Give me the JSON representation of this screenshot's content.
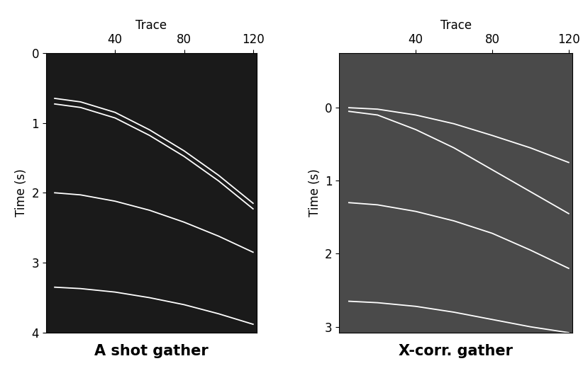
{
  "chart_data": [
    {
      "type": "line",
      "title": "A shot gather",
      "xlabel": "Trace",
      "ylabel": "Time (s)",
      "x": [
        5,
        20,
        40,
        60,
        80,
        100,
        120
      ],
      "xlim": [
        0,
        122
      ],
      "xticks": [
        40,
        80,
        120
      ],
      "ylim": [
        4,
        0
      ],
      "yticks": [
        0,
        1,
        2,
        3,
        4
      ],
      "series": [
        {
          "color": "#ffffff",
          "values": [
            0.65,
            0.7,
            0.85,
            1.1,
            1.4,
            1.75,
            2.15
          ]
        },
        {
          "color": "#ffffff",
          "values": [
            0.73,
            0.78,
            0.93,
            1.18,
            1.48,
            1.83,
            2.23
          ]
        },
        {
          "color": "#ffffff",
          "values": [
            2.0,
            2.03,
            2.12,
            2.25,
            2.42,
            2.62,
            2.85
          ]
        },
        {
          "color": "#ffffff",
          "values": [
            3.35,
            3.37,
            3.42,
            3.5,
            3.6,
            3.73,
            3.88
          ]
        }
      ]
    },
    {
      "type": "line",
      "title": "X-corr. gather",
      "xlabel": "Trace",
      "ylabel": "Time (s)",
      "x": [
        5,
        20,
        40,
        60,
        80,
        100,
        120
      ],
      "xlim": [
        0,
        122
      ],
      "xticks": [
        40,
        80,
        120
      ],
      "ylim": [
        3.08,
        -0.75
      ],
      "yticks": [
        0,
        1,
        2,
        3
      ],
      "series": [
        {
          "color": "#ffffff",
          "values": [
            0.0,
            0.02,
            0.1,
            0.22,
            0.38,
            0.55,
            0.75
          ]
        },
        {
          "color": "#ffffff",
          "values": [
            0.05,
            0.1,
            0.3,
            0.55,
            0.85,
            1.15,
            1.45
          ]
        },
        {
          "color": "#ffffff",
          "values": [
            1.3,
            1.33,
            1.42,
            1.55,
            1.72,
            1.95,
            2.2
          ]
        },
        {
          "color": "#ffffff",
          "values": [
            2.65,
            2.67,
            2.72,
            2.8,
            2.9,
            3.0,
            3.08
          ]
        }
      ]
    }
  ]
}
